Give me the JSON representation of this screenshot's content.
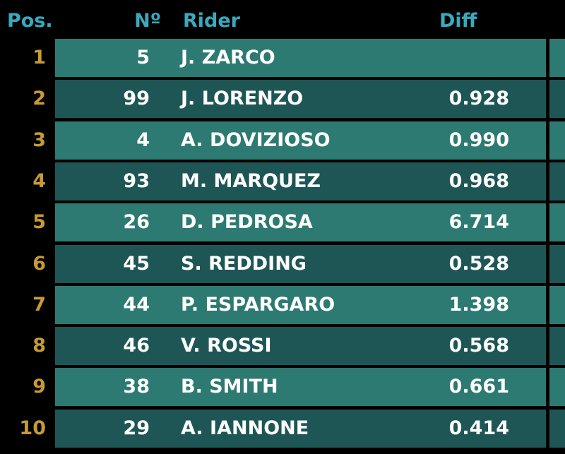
{
  "header": {
    "pos": "Pos.",
    "number": "Nº",
    "rider": "Rider",
    "diff": "Diff"
  },
  "rows": [
    {
      "pos": "1",
      "number": "5",
      "rider": "J. ZARCO"
    },
    {
      "pos": "2",
      "number": "99",
      "rider": "J. LORENZO",
      "diff": "0.928"
    },
    {
      "pos": "3",
      "number": "4",
      "rider": "A. DOVIZIOSO",
      "diff": "0.990"
    },
    {
      "pos": "4",
      "number": "93",
      "rider": "M. MARQUEZ",
      "diff": "0.968"
    },
    {
      "pos": "5",
      "number": "26",
      "rider": "D. PEDROSA",
      "diff": "6.714"
    },
    {
      "pos": "6",
      "number": "45",
      "rider": "S. REDDING",
      "diff": "0.528"
    },
    {
      "pos": "7",
      "number": "44",
      "rider": "P. ESPARGARO",
      "diff": "1.398"
    },
    {
      "pos": "8",
      "number": "46",
      "rider": "V. ROSSI",
      "diff": "0.568"
    },
    {
      "pos": "9",
      "number": "38",
      "rider": "B. SMITH",
      "diff": "0.661"
    },
    {
      "pos": "10",
      "number": "29",
      "rider": "A. IANNONE",
      "diff": "0.414"
    }
  ]
}
